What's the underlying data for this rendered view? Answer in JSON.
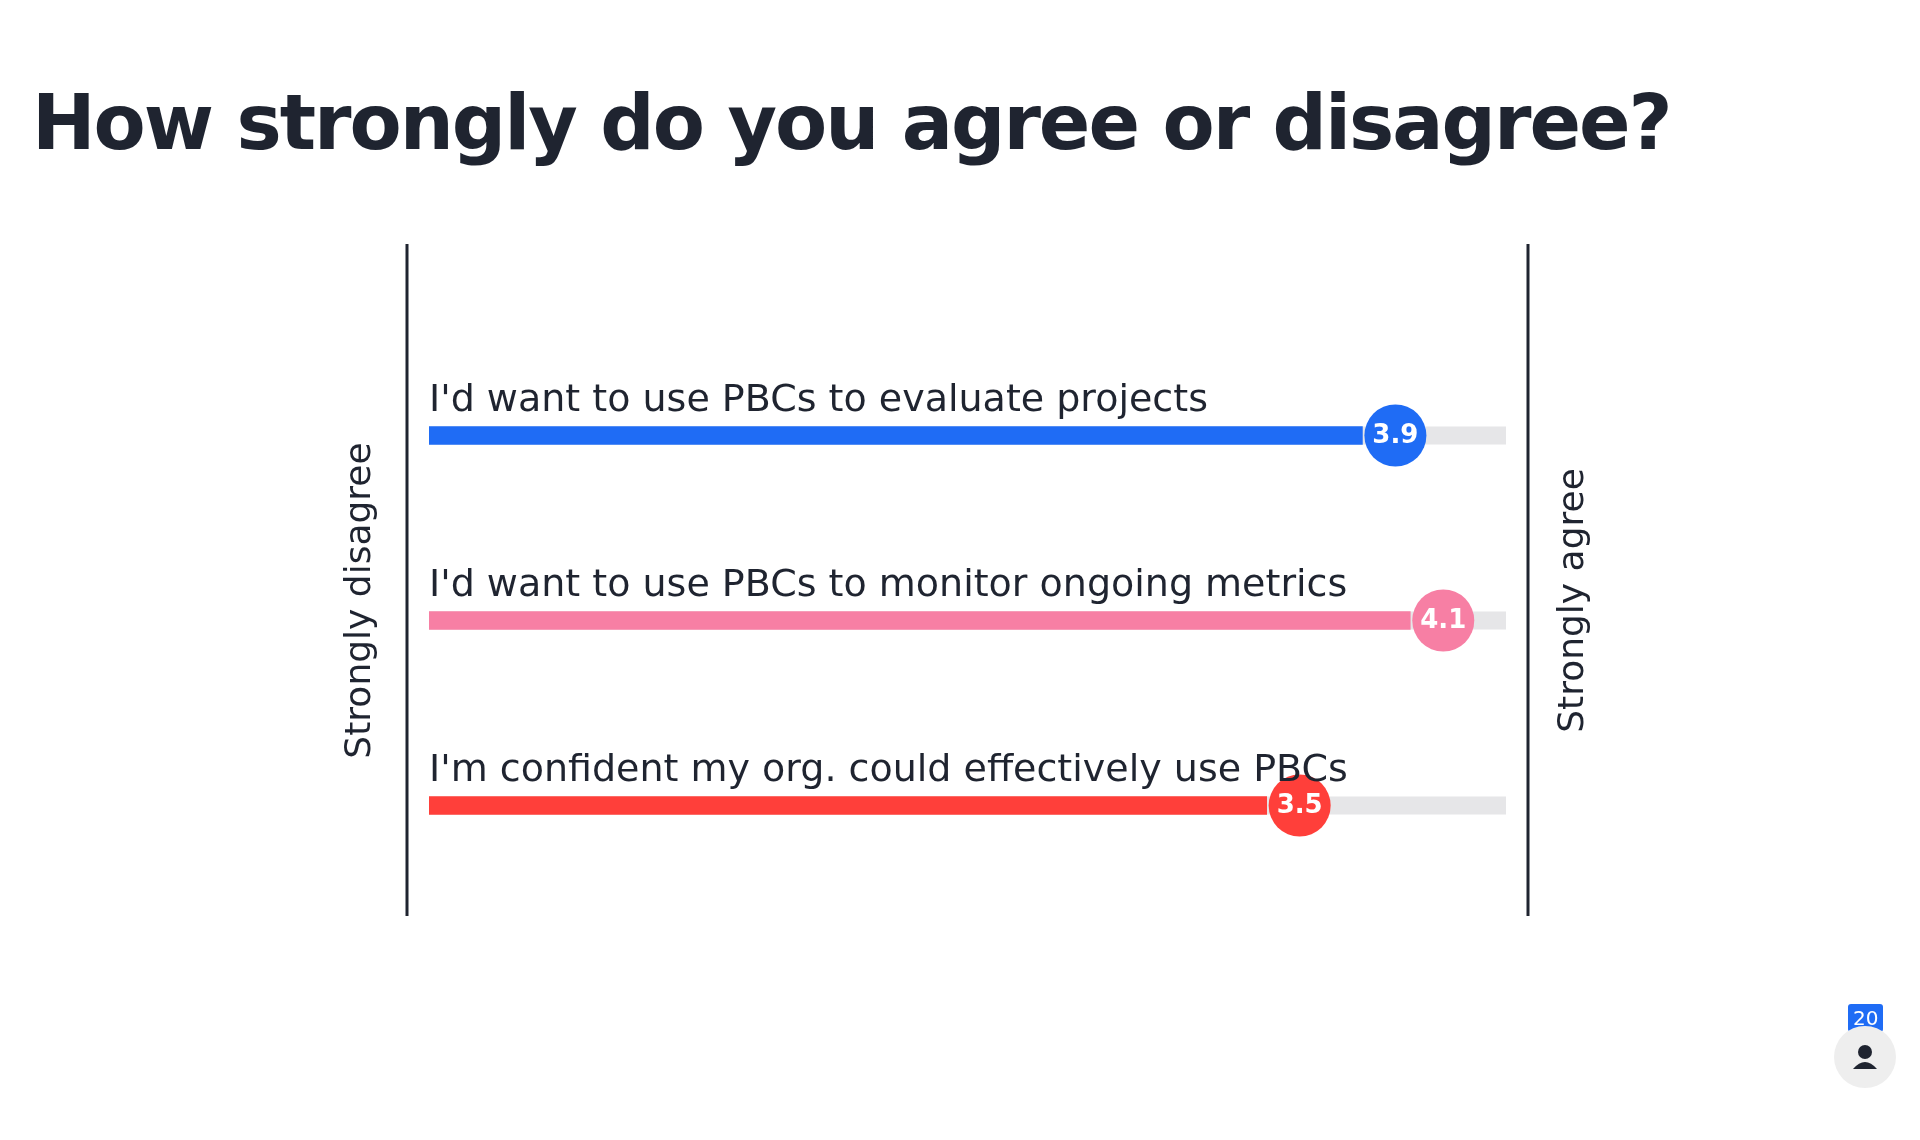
{
  "chart_data": {
    "type": "bar",
    "orientation": "horizontal",
    "title": "How strongly do you agree or disagree?",
    "categories": [
      "I'd want to use PBCs to evaluate projects",
      "I'd want to use PBCs to monitor ongoing metrics",
      "I'm confident my org. could effectively use PBCs"
    ],
    "values": [
      3.9,
      4.1,
      3.5
    ],
    "colors": [
      "#1f6cf5",
      "#f77fa4",
      "#ff3f3a"
    ],
    "data_labels": true,
    "annotations": [
      "Strongly disagree",
      "Strongly agree",
      "20"
    ]
  }
}
